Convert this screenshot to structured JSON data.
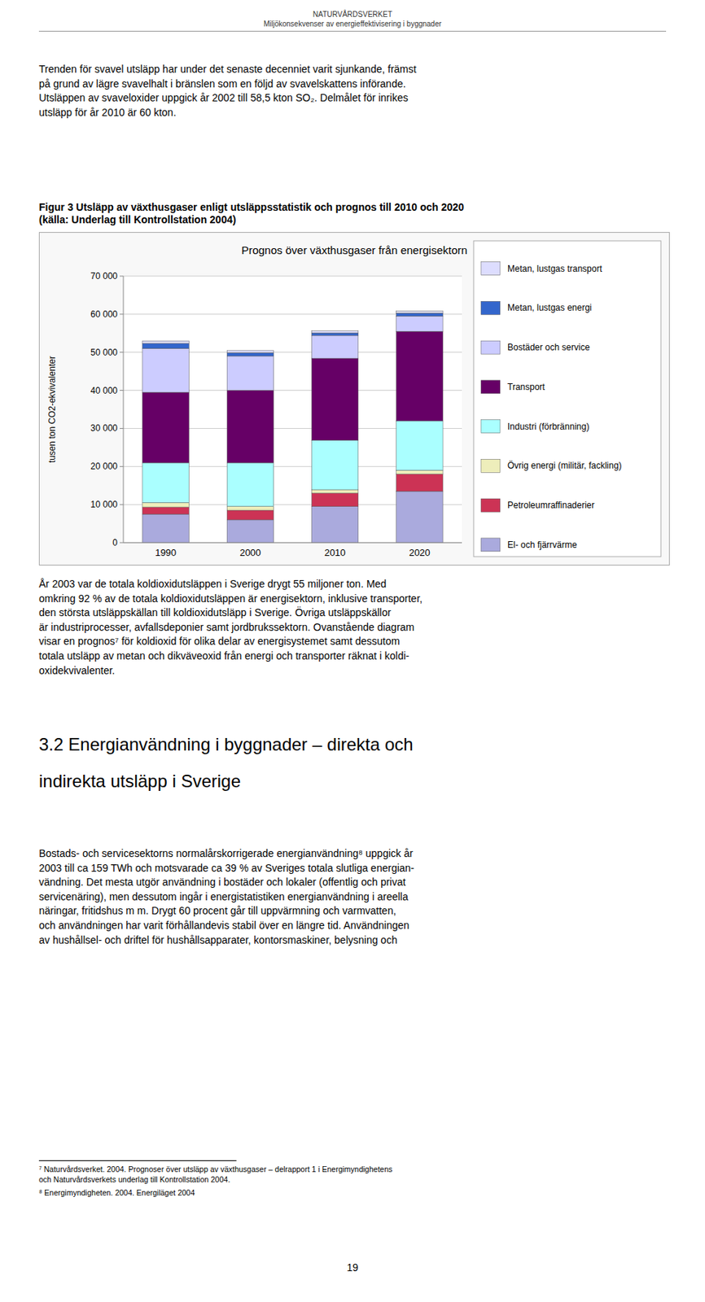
{
  "chart_data": {
    "type": "bar",
    "stacked": true,
    "grid": true,
    "legend": "right",
    "title": "Prognos över växthusgaser från energisektorn",
    "ylabel": "tusen ton CO2-ekvivalenter",
    "categories": [
      "1990",
      "2000",
      "2010",
      "2020"
    ],
    "series": [
      {
        "name": "El- och fjärrvärme",
        "color": "#AAAADD",
        "values": [
          7500,
          6000,
          9500,
          13500
        ]
      },
      {
        "name": "Petroleumraffinaderier",
        "color": "#CC3355",
        "values": [
          1800,
          2500,
          3500,
          4500
        ]
      },
      {
        "name": "Övrig energi (militär, fackling)",
        "color": "#EEEEBB",
        "values": [
          1200,
          1000,
          900,
          1000
        ]
      },
      {
        "name": "Industri (förbränning)",
        "color": "#AAFFFF",
        "values": [
          10500,
          11500,
          13000,
          13000
        ]
      },
      {
        "name": "Transport",
        "color": "#660066",
        "values": [
          18500,
          19000,
          21500,
          23500
        ]
      },
      {
        "name": "Bostäder och service",
        "color": "#CCCCFF",
        "values": [
          11500,
          9000,
          6000,
          4000
        ]
      },
      {
        "name": "Metan, lustgas energi",
        "color": "#3366CC",
        "values": [
          1300,
          900,
          700,
          800
        ]
      },
      {
        "name": "Metan, lustgas transport",
        "color": "#DDDDFF",
        "values": [
          700,
          600,
          500,
          500
        ]
      }
    ],
    "ylim": [
      0,
      70000
    ],
    "yticks": [
      0,
      {
        "value": 10000,
        "label": "10 000"
      },
      {
        "value": 20000,
        "label": "20 000"
      },
      {
        "value": 30000,
        "label": "30 000"
      },
      {
        "value": 40000,
        "label": "40 000"
      },
      {
        "value": 50000,
        "label": "50 000"
      },
      {
        "value": 60000,
        "label": "60 000"
      },
      {
        "value": 70000,
        "label": "70 000"
      }
    ]
  },
  "page": {
    "header_title": "NATURVÅRDSVERKET",
    "header_subtitle": "Miljökonsekvenser av energieffektivisering i byggnader",
    "body_text1": "Trenden för svavel utsläpp har under det senaste decenniet varit sjunkande, främst\npå grund av lägre svavelhalt i bränslen som en följd av svavelskattens införande.\nUtsläppen av svaveloxider uppgick år 2002 till 58,5 kton SO₂. Delmålet för inrikes\nutsläpp för år 2010 är 60 kton.",
    "caption_line1": "Figur 3 Utsläpp av växthusgaser enligt utsläppsstatistik och prognos till 2010 och 2020",
    "caption_line2": "(källa: Underlag till Kontrollstation 2004)",
    "body_text2_lines": [
      "År 2003 var de totala koldioxidutsläppen i Sverige drygt 55 miljoner ton. Med",
      "omkring 92 % av de totala koldioxidutsläppen är energisektorn, inklusive transporter,",
      "den största utsläppskällan till koldioxidutsläpp i Sverige. Övriga utsläppskällor",
      "är industriprocesser, avfallsdeponier samt jordbrukssektorn. Ovanstående diagram",
      "visar en prognos⁷ för koldioxid för olika delar av energisystemet samt dessutom",
      "totala utsläpp av metan och dikväveoxid från energi och transporter räknat i koldi-",
      "oxidekvivalenter."
    ],
    "section_heading_line1": "3.2 Energianvändning i byggnader – direkta och",
    "section_heading_line2": "indirekta utsläpp i Sverige",
    "body_text3_lines": [
      "Bostads- och servicesektorns normalårskorrigerade energianvändning⁸ uppgick år",
      "2003 till ca 159 TWh och motsvarade ca 39 % av Sveriges totala slutliga energian-",
      "vändning. Det mesta utgör användning i bostäder och lokaler (offentlig och privat",
      "servicenäring), men dessutom ingår i energistatistiken energianvändning i areella",
      "näringar, fritidshus m m. Drygt 60 procent går till uppvärmning och varmvatten,",
      "och användningen har varit förhållandevis stabil över en längre tid. Användningen",
      "av hushållsel- och driftel för hushållsapparater, kontorsmaskiner, belysning och"
    ],
    "footnote1": "⁷ Naturvårdsverket. 2004. Prognoser över utsläpp av växthusgaser – delrapport 1 i Energimyndighetens",
    "footnote1b": "och Naturvårdsverkets underlag till Kontrollstation 2004.",
    "footnote2": "⁸ Energimyndigheten. 2004. Energiläget 2004",
    "page_number": "19"
  }
}
